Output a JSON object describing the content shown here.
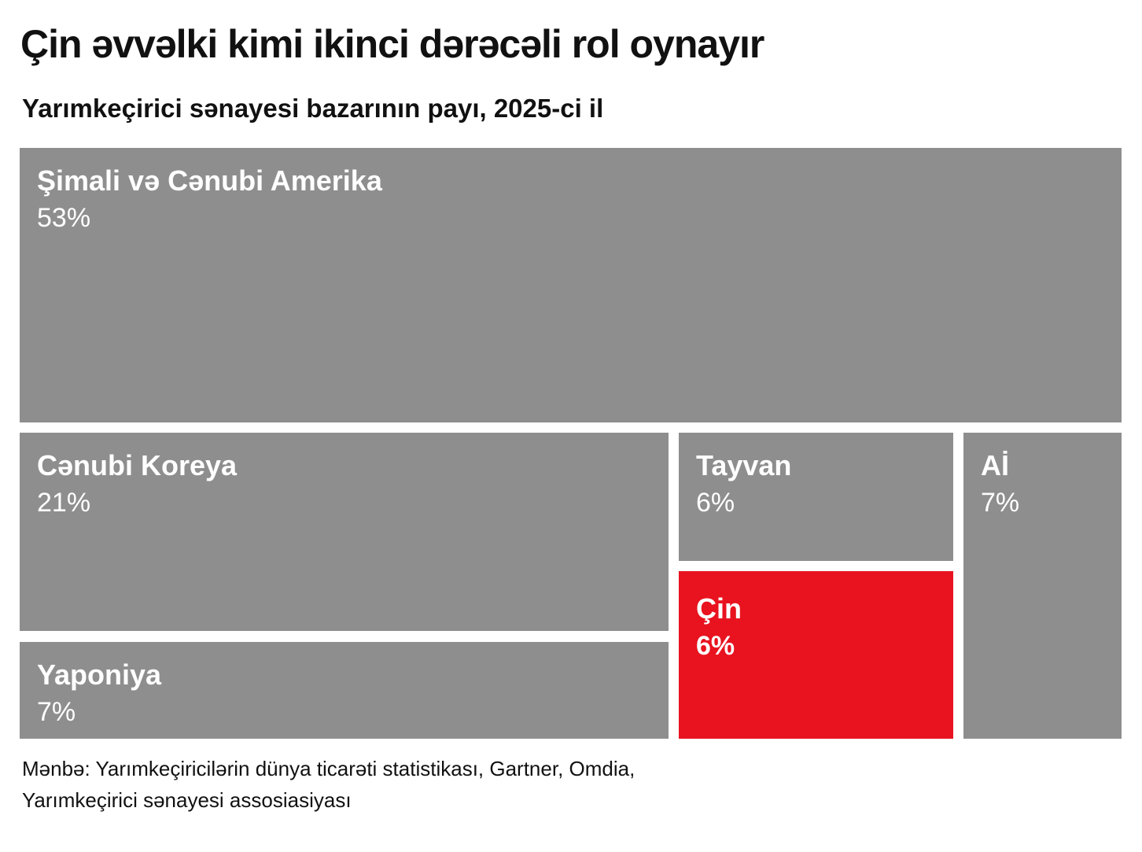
{
  "title": "Çin əvvəlki kimi ikinci dərəcəli rol oynayır",
  "subtitle": "Yarımkeçirici sənayesi bazarının payı, 2025-ci il",
  "chart_data": {
    "type": "treemap",
    "title": "Çin əvvəlki kimi ikinci dərəcəli rol oynayır",
    "subtitle": "Yarımkeçirici sənayesi bazarının payı, 2025-ci il",
    "unit": "%",
    "items": [
      {
        "name": "Şimali və Cənubi Amerika",
        "value": 53,
        "label": "53%",
        "color": "#8e8e8e"
      },
      {
        "name": "Cənubi Koreya",
        "value": 21,
        "label": "21%",
        "color": "#8e8e8e"
      },
      {
        "name": "Yaponiya",
        "value": 7,
        "label": "7%",
        "color": "#8e8e8e"
      },
      {
        "name": "Tayvan",
        "value": 6,
        "label": "6%",
        "color": "#8e8e8e"
      },
      {
        "name": "Çin",
        "value": 6,
        "label": "6%",
        "color": "#e8131f",
        "highlight": true
      },
      {
        "name": "Aİ",
        "value": 7,
        "label": "7%",
        "color": "#8e8e8e"
      }
    ]
  },
  "source": {
    "line1": "Mənbə: Yarımkeçiricilərin dünya ticarəti statistikası, Gartner, Omdia,",
    "line2": "Yarımkeçirici sənayesi assosiasiyası"
  }
}
